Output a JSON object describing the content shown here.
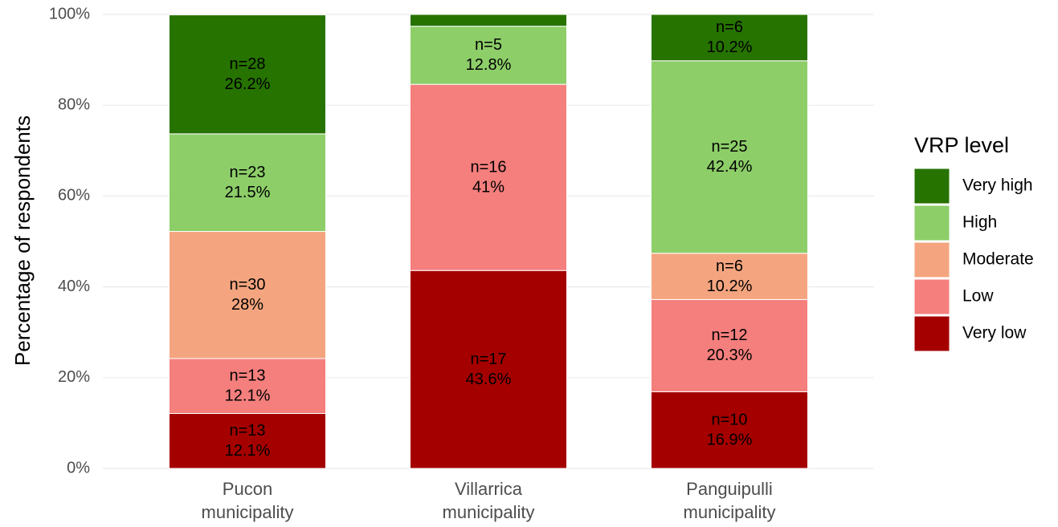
{
  "chart_data": {
    "type": "stacked_bar",
    "y_label": "Percentage of respondents",
    "legend_title": "VRP level",
    "legend_position": "right",
    "categories": [
      [
        "Pucon",
        "municipality"
      ],
      [
        "Villarrica",
        "municipality"
      ],
      [
        "Panguipulli",
        "municipality"
      ]
    ],
    "series": [
      {
        "name": "Very low",
        "color": "#a50000",
        "values": [
          12.1,
          43.6,
          16.9
        ],
        "value_labels": [
          "12.1%",
          "43.6%",
          "16.9%"
        ],
        "n_labels": [
          "n=13",
          "n=17",
          "n=10"
        ]
      },
      {
        "name": "Low",
        "color": "#f47f7d",
        "values": [
          12.1,
          41,
          20.3
        ],
        "value_labels": [
          "12.1%",
          "41%",
          "20.3%"
        ],
        "n_labels": [
          "n=13",
          "n=16",
          "n=12"
        ]
      },
      {
        "name": "Moderate",
        "color": "#f4a57f",
        "values": [
          28,
          null,
          10.2
        ],
        "value_labels": [
          "28%",
          null,
          "10.2%"
        ],
        "n_labels": [
          "n=30",
          null,
          "n=6"
        ]
      },
      {
        "name": "High",
        "color": "#8dce69",
        "values": [
          21.5,
          12.8,
          42.4
        ],
        "value_labels": [
          "21.5%",
          "12.8%",
          "42.4%"
        ],
        "n_labels": [
          "n=23",
          "n=5",
          "n=25"
        ]
      },
      {
        "name": "Very high",
        "color": "#267300",
        "values": [
          26.2,
          2.6,
          10.2
        ],
        "value_labels": [
          "26.2%",
          null,
          "10.2%"
        ],
        "n_labels": [
          "n=28",
          null,
          "n=6"
        ]
      }
    ],
    "ylim": [
      0,
      100
    ],
    "yticks": [
      {
        "value": 0,
        "label": "0%"
      },
      {
        "value": 20,
        "label": "20%"
      },
      {
        "value": 40,
        "label": "40%"
      },
      {
        "value": 60,
        "label": "60%"
      },
      {
        "value": 80,
        "label": "80%"
      },
      {
        "value": 100,
        "label": "100%"
      }
    ],
    "grid": true
  }
}
